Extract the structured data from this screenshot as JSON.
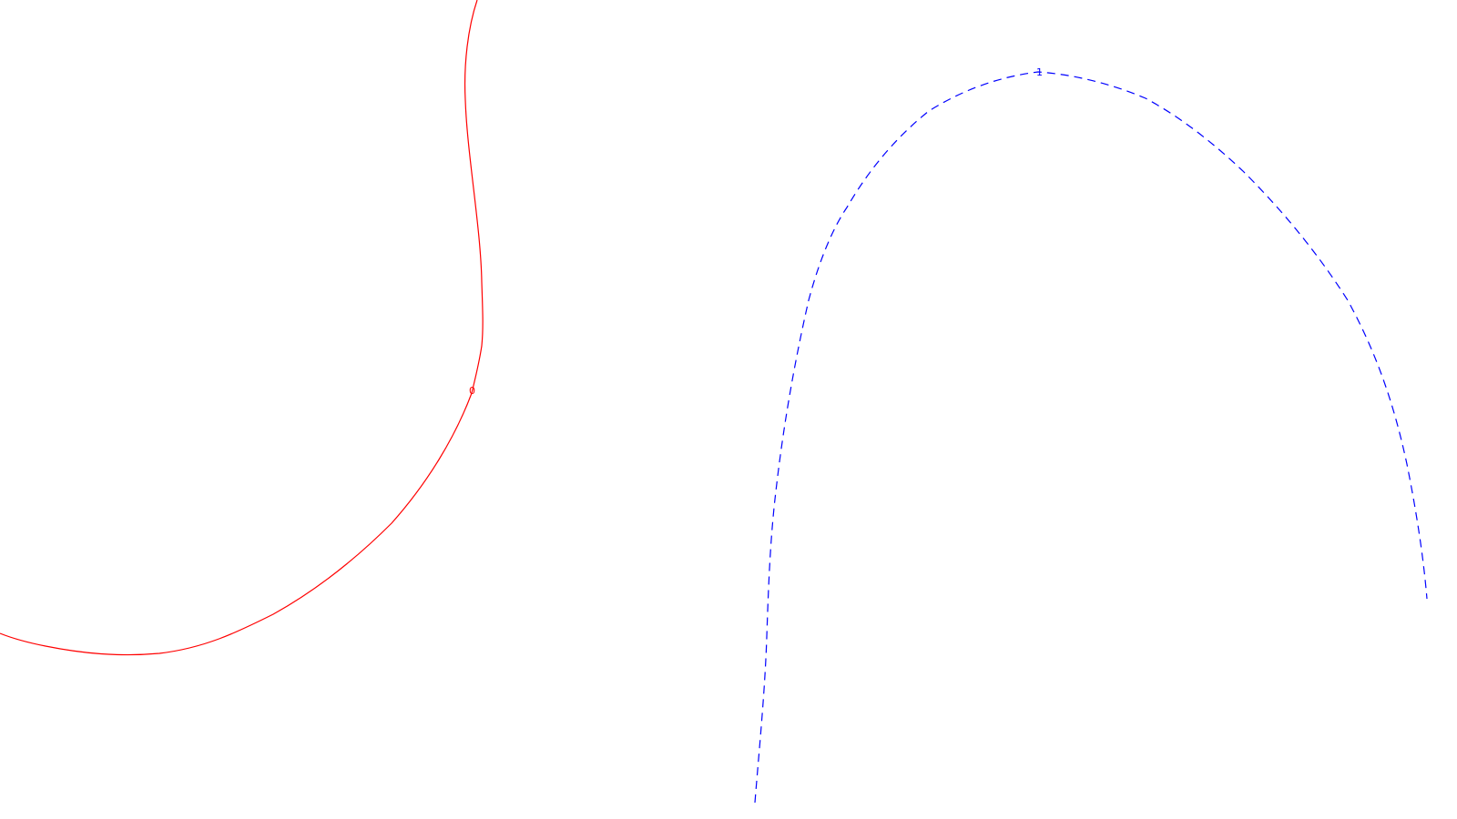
{
  "background": "#ffffff",
  "contours": [
    {
      "level_label": "0",
      "color": "#ff0000",
      "line_style": "solid"
    },
    {
      "level_label": "1",
      "color": "#0000ff",
      "line_style": "dashed"
    }
  ]
}
